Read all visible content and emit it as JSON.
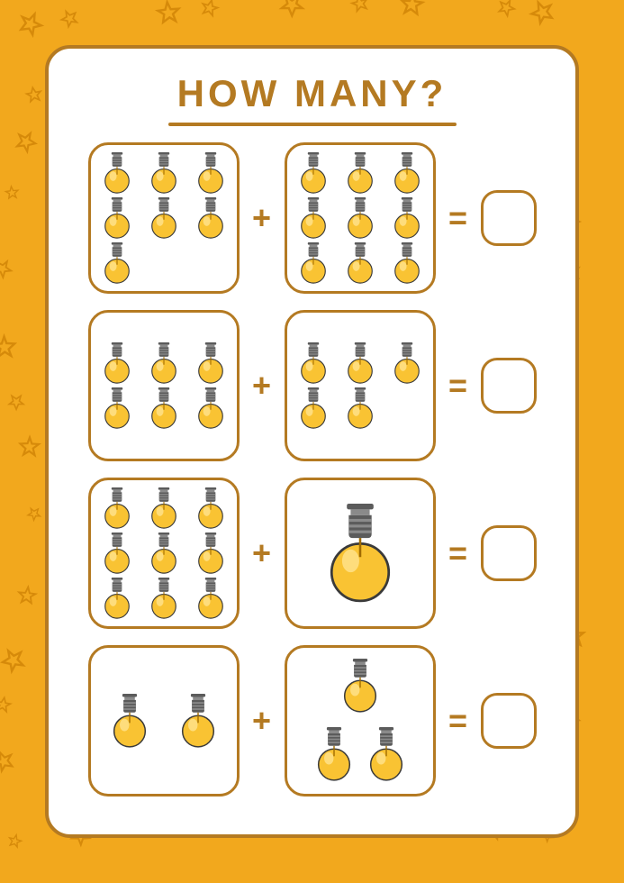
{
  "title": "HOW MANY?",
  "colors": {
    "bg": "#f2a81d",
    "star": "#d68a0a",
    "border": "#b47a22",
    "bulb_glass": "#f9c333",
    "bulb_highlight": "#ffe28a",
    "bulb_cap": "#5b5b5b",
    "bulb_cap_light": "#8a8a8a"
  },
  "operator_plus": "+",
  "operator_equals": "=",
  "rows": [
    {
      "left_count": 7,
      "right_count": 9
    },
    {
      "left_count": 6,
      "right_count": 5
    },
    {
      "left_count": 9,
      "right_count": 1
    },
    {
      "left_count": 2,
      "right_count": 3
    }
  ],
  "bulb_sizes": {
    "small": 46,
    "medium": 60,
    "large": 110
  }
}
